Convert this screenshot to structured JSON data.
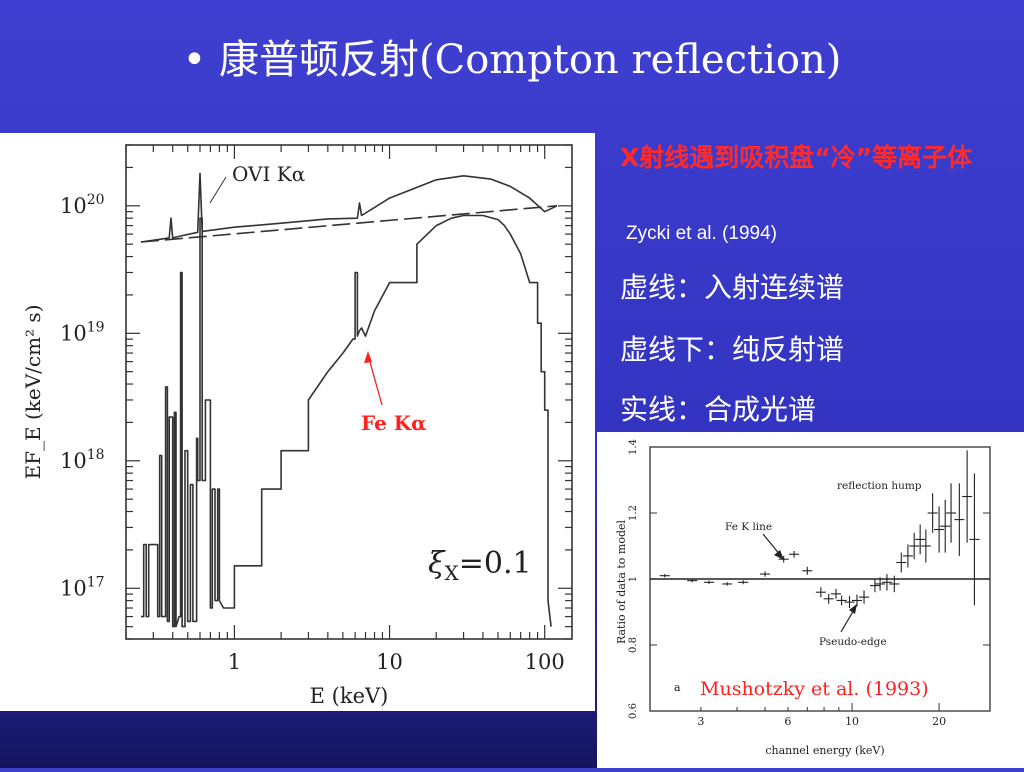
{
  "slide": {
    "bullet": "•",
    "title": "康普顿反射(Compton reflection)"
  },
  "notes": {
    "headline": "X射线遇到吸积盘“冷”等离子体",
    "citation": "Zycki et al. (1994)",
    "line1": "虚线：入射连续谱",
    "line2": "虚线下：纯反射谱",
    "line3": "实线：合成光谱"
  },
  "colors": {
    "background": "#3434c2",
    "highlight": "#ff2a2a",
    "plot_ink": "#333333"
  },
  "chart_data": [
    {
      "type": "line",
      "xlabel": "E (keV)",
      "ylabel": "EF_E  (keV/cm² s)",
      "xscale": "log",
      "yscale": "log",
      "xlim": [
        0.2,
        150
      ],
      "ylim": [
        4e+16,
        3e+20
      ],
      "xticks": [
        {
          "value": 1,
          "label": "1"
        },
        {
          "value": 10,
          "label": "10"
        },
        {
          "value": 100,
          "label": "100"
        }
      ],
      "yticks": [
        {
          "value": 1e+17,
          "base": "10",
          "exp": "17"
        },
        {
          "value": 1e+18,
          "base": "10",
          "exp": "18"
        },
        {
          "value": 1e+19,
          "base": "10",
          "exp": "19"
        },
        {
          "value": 1e+20,
          "base": "10",
          "exp": "20"
        }
      ],
      "annotations": {
        "ovi": "OVI Kα",
        "fe": "Fe Kα",
        "xi_symbol": "ξ",
        "xi_sub": "X",
        "xi_value": "=0.1"
      },
      "series": [
        {
          "style": "dashed",
          "x": [
            0.25,
            120
          ],
          "y": [
            5.2e+19,
            1e+20
          ]
        },
        {
          "style": "solid",
          "x": [
            0.25,
            0.38,
            0.39,
            0.4,
            0.45,
            0.58,
            0.6,
            0.62,
            1,
            2,
            4,
            6.2,
            6.4,
            6.6,
            10,
            20,
            30,
            45,
            60,
            80,
            100,
            120
          ],
          "y": [
            5.2e+19,
            5.6e+19,
            8e+19,
            5.6e+19,
            5.8e+19,
            6.2e+19,
            1.8e+20,
            6.3e+19,
            6.8e+19,
            7.3e+19,
            7.9e+19,
            8e+19,
            1.05e+20,
            8.4e+19,
            1.15e+20,
            1.6e+20,
            1.72e+20,
            1.62e+20,
            1.42e+20,
            1.15e+20,
            9e+19,
            1e+20
          ]
        },
        {
          "style": "solid",
          "x": [
            0.25,
            0.26,
            0.27,
            0.28,
            0.32,
            0.33,
            0.34,
            0.36,
            0.37,
            0.38,
            0.4,
            0.41,
            0.42,
            0.44,
            0.45,
            0.46,
            0.48,
            0.5,
            0.52,
            0.54,
            0.57,
            0.58,
            0.6,
            0.62,
            0.65,
            0.7,
            0.72,
            0.75,
            0.78,
            0.8,
            0.85,
            1,
            1.5,
            2,
            3,
            4,
            5,
            5.8,
            6.0,
            6.2,
            6.4,
            6.6,
            7.0,
            8,
            10,
            15,
            20,
            25,
            30,
            40,
            50,
            55,
            60,
            70,
            80,
            90,
            95,
            100,
            105,
            110
          ],
          "y": [
            6e+16,
            2.2e+17,
            6e+16,
            2.2e+17,
            6e+16,
            1.1e+18,
            6e+16,
            3.8e+18,
            5.5e+16,
            2.2e+18,
            5e+16,
            2.4e+18,
            5e+16,
            6e+16,
            3e+19,
            5e+16,
            1.2e+18,
            5.5e+16,
            6.5e+17,
            5.5e+16,
            1.5e+18,
            7e+17,
            8e+19,
            7e+17,
            3e+18,
            7e+16,
            6e+17,
            8e+16,
            6e+17,
            8e+16,
            7e+16,
            1.5e+17,
            6e+17,
            1.2e+18,
            3e+18,
            5e+18,
            7e+18,
            9e+18,
            3e+19,
            9.5e+18,
            1.05e+19,
            1.1e+19,
            9.5e+18,
            1.5e+19,
            2.5e+19,
            5e+19,
            7e+19,
            8e+19,
            8.4e+19,
            8.4e+19,
            7.8e+19,
            7e+19,
            6e+19,
            4.2e+19,
            2.5e+19,
            1.2e+19,
            5e+18,
            2.5e+18,
            8e+16,
            5e+16
          ]
        }
      ]
    },
    {
      "type": "scatter",
      "xlabel": "channel energy (keV)",
      "ylabel": "Ratio of data to model",
      "xscale": "log",
      "xlim": [
        2,
        30
      ],
      "ylim": [
        0.6,
        1.4
      ],
      "xticks": [
        3,
        6,
        10,
        20
      ],
      "yticks": [
        0.6,
        0.8,
        1,
        1.2,
        1.4
      ],
      "annotations": {
        "hump": "reflection hump",
        "fe": "Fe K line",
        "edge": "Pseudo-edge",
        "panel": "a",
        "citation": "Mushotzky et al. (1993)"
      },
      "series": [
        {
          "x": [
            2.25,
            2.8,
            3.2,
            3.7,
            4.2,
            5,
            5.8,
            6.3,
            7,
            7.8,
            8.3,
            8.8,
            9.2,
            9.8,
            10.4,
            11,
            12,
            12.5,
            13.2,
            14,
            14.8,
            15.6,
            16.4,
            17.2,
            18,
            19,
            20,
            21,
            22,
            23.5,
            25,
            26.5
          ],
          "y": [
            1.01,
            0.995,
            0.99,
            0.985,
            0.99,
            1.015,
            1.06,
            1.075,
            1.025,
            0.96,
            0.94,
            0.955,
            0.935,
            0.93,
            0.935,
            0.945,
            0.98,
            0.985,
            0.99,
            0.985,
            1.05,
            1.07,
            1.1,
            1.12,
            1.1,
            1.2,
            1.15,
            1.16,
            1.2,
            1.18,
            1.25,
            1.12
          ],
          "err": [
            0.005,
            0.005,
            0.005,
            0.005,
            0.006,
            0.008,
            0.01,
            0.01,
            0.012,
            0.015,
            0.015,
            0.015,
            0.015,
            0.018,
            0.018,
            0.02,
            0.02,
            0.02,
            0.025,
            0.025,
            0.03,
            0.035,
            0.04,
            0.045,
            0.05,
            0.06,
            0.07,
            0.08,
            0.09,
            0.11,
            0.14,
            0.2
          ]
        }
      ]
    }
  ]
}
